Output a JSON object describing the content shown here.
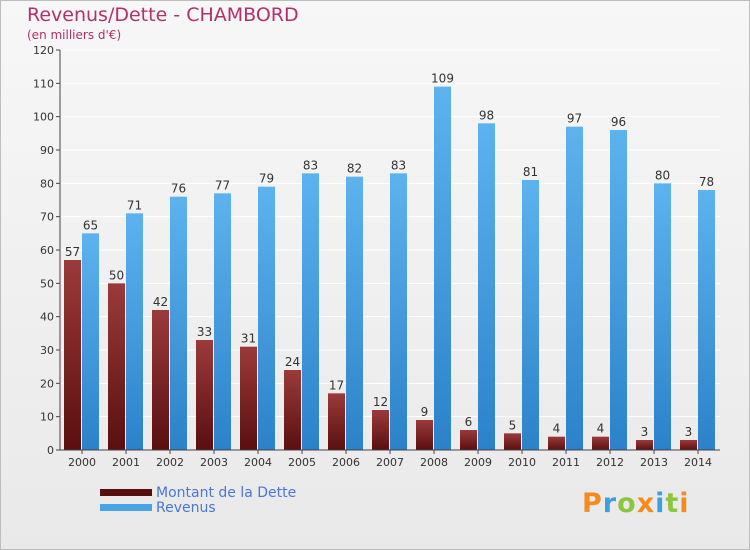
{
  "header": {
    "title": "Revenus/Dette - CHAMBORD",
    "subtitle": "(en milliers d'€)"
  },
  "chart_data": {
    "type": "bar",
    "title": "Revenus/Dette - CHAMBORD",
    "ylabel": "(en milliers d'€)",
    "xlabel": "",
    "ylim": [
      0,
      120
    ],
    "yticks": [
      0,
      10,
      20,
      30,
      40,
      50,
      60,
      70,
      80,
      90,
      100,
      110,
      120
    ],
    "grid": true,
    "categories": [
      "2000",
      "2001",
      "2002",
      "2003",
      "2004",
      "2005",
      "2006",
      "2007",
      "2008",
      "2009",
      "2010",
      "2011",
      "2012",
      "2013",
      "2014"
    ],
    "series": [
      {
        "name": "Montant de la Dette",
        "color": "#8c2a2a",
        "values": [
          57,
          50,
          42,
          33,
          31,
          24,
          17,
          12,
          9,
          6,
          5,
          4,
          4,
          3,
          3
        ]
      },
      {
        "name": "Revenus",
        "color": "#4aa3e6",
        "values": [
          65,
          71,
          76,
          77,
          79,
          83,
          82,
          83,
          109,
          98,
          81,
          97,
          96,
          80,
          78
        ]
      }
    ],
    "legend_position": "bottom-left"
  },
  "logo": {
    "text": "Proxiti",
    "colors": [
      "#f28c1e",
      "#3da0dc",
      "#8cc63f"
    ]
  }
}
